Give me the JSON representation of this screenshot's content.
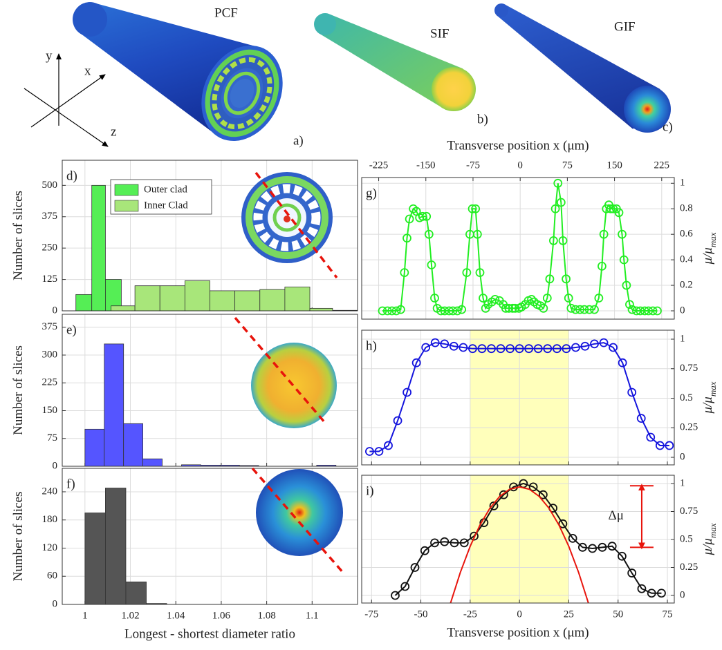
{
  "illustrations": {
    "fibers": [
      {
        "name": "PCF",
        "label": "a)"
      },
      {
        "name": "SIF",
        "label": "b)"
      },
      {
        "name": "GIF",
        "label": "c)"
      }
    ],
    "axes": [
      "y",
      "x",
      "z"
    ]
  },
  "chart_data": [
    {
      "type": "histogram",
      "label": "d)",
      "ylabel": "Number of slices",
      "ylim": [
        0,
        600
      ],
      "yticks": [
        0,
        125,
        250,
        375,
        500
      ],
      "grid": true,
      "legend": "upper left",
      "series": [
        {
          "name": "Outer clad",
          "color": "#55ee55",
          "bins": [
            0.996,
            1.003,
            1.009,
            1.016
          ],
          "values": [
            65,
            500,
            125
          ]
        },
        {
          "name": "Inner Clad",
          "color": "#a8e67a",
          "bins": [
            1.0115,
            1.022,
            1.033,
            1.044,
            1.055,
            1.066,
            1.077,
            1.088,
            1.099,
            1.109,
            1.12
          ],
          "values": [
            20,
            100,
            100,
            120,
            80,
            80,
            85,
            95,
            10,
            2
          ]
        }
      ]
    },
    {
      "type": "histogram",
      "label": "e)",
      "ylabel": "Number of slices",
      "ylim": [
        0,
        410
      ],
      "yticks": [
        0,
        75,
        150,
        225,
        300,
        375
      ],
      "grid": true,
      "series": [
        {
          "color": "#5555ff",
          "bins": [
            1,
            1.0085,
            1.017,
            1.0255,
            1.034,
            1.0425,
            1.051,
            1.0595,
            1.068,
            1.0765,
            1.085,
            1.0935,
            1.102,
            1.1105
          ],
          "values": [
            100,
            330,
            115,
            20,
            0,
            4,
            3,
            3,
            2,
            0,
            0,
            0,
            3
          ]
        }
      ]
    },
    {
      "type": "histogram",
      "label": "f)",
      "ylabel": "Number of slices",
      "xlabel": "Longest - shortest diameter ratio",
      "xlim": [
        0.99,
        1.12
      ],
      "xticks": [
        1,
        1.02,
        1.04,
        1.06,
        1.08,
        1.1
      ],
      "ylim": [
        0,
        290
      ],
      "yticks": [
        0,
        60,
        120,
        180,
        240
      ],
      "grid": true,
      "series": [
        {
          "color": "#555555",
          "bins": [
            1,
            1.009,
            1.018,
            1.027,
            1.036
          ],
          "values": [
            195,
            248,
            48,
            2
          ]
        }
      ]
    },
    {
      "type": "line",
      "label": "g)",
      "xlabel": "Transverse position x (μm)",
      "xaxis": "top",
      "yaxis": "right",
      "ylabel": "μ/μ",
      "ylabel_sub": "max",
      "grid": true,
      "xlim": [
        -252,
        245
      ],
      "xticks": [
        -225,
        -150,
        -75,
        0,
        75,
        150,
        225
      ],
      "ylim": [
        -0.065,
        1.045
      ],
      "yticks": [
        0,
        0.2,
        0.4,
        0.6,
        0.8,
        1
      ],
      "x": [
        -219,
        -211,
        -204,
        -197,
        -190,
        -184,
        -180,
        -176,
        -170,
        -165,
        -160,
        -155,
        -149,
        -145,
        -141,
        -136,
        -132,
        -126,
        -120,
        -113,
        -107,
        -100,
        -93,
        -85,
        -80,
        -76,
        -71,
        -68,
        -64,
        -59,
        -55,
        -51,
        -45,
        -40,
        -33,
        -27,
        -23,
        -18,
        -12,
        -8,
        -2,
        2,
        8,
        13,
        18,
        22,
        27,
        32,
        37,
        43,
        47,
        53,
        56,
        60,
        65,
        68,
        73,
        77,
        81,
        88,
        95,
        102,
        110,
        118,
        125,
        130,
        133,
        137,
        141,
        144,
        148,
        153,
        157,
        162,
        165,
        169,
        174,
        178,
        185,
        191,
        198,
        204,
        211,
        218
      ],
      "series": [
        {
          "color": "#22ee22",
          "marker": "circle",
          "values": [
            0,
            0,
            0,
            0,
            0.01,
            0.3,
            0.57,
            0.72,
            0.8,
            0.78,
            0.73,
            0.74,
            0.74,
            0.6,
            0.36,
            0.1,
            0.02,
            0,
            0,
            0,
            0,
            0,
            0.01,
            0.3,
            0.6,
            0.8,
            0.8,
            0.6,
            0.3,
            0.1,
            0.02,
            0.05,
            0.07,
            0.09,
            0.08,
            0.05,
            0.02,
            0.02,
            0.02,
            0.02,
            0.02,
            0.03,
            0.05,
            0.08,
            0.09,
            0.07,
            0.05,
            0.04,
            0.02,
            0.1,
            0.25,
            0.55,
            0.8,
            1,
            0.85,
            0.55,
            0.25,
            0.1,
            0.02,
            0.01,
            0.01,
            0.01,
            0.01,
            0.01,
            0.1,
            0.35,
            0.6,
            0.8,
            0.83,
            0.8,
            0.8,
            0.8,
            0.77,
            0.6,
            0.4,
            0.2,
            0.05,
            0.01,
            0,
            0,
            0,
            0,
            0,
            0
          ]
        }
      ]
    },
    {
      "type": "line",
      "label": "h)",
      "yaxis": "right",
      "ylabel": "μ/μ",
      "ylabel_sub": "max",
      "grid": true,
      "highlight": [
        -25,
        25
      ],
      "highlight_color": "#ffffaa",
      "ylim": [
        -0.064,
        1.076
      ],
      "yticks": [
        0,
        0.25,
        0.5,
        0.75,
        1
      ],
      "x": [
        -76,
        -71.25,
        -66.5,
        -61.75,
        -57,
        -52.25,
        -47.5,
        -42.75,
        -38,
        -33.25,
        -28.5,
        -23.75,
        -19,
        -14.25,
        -9.5,
        -4.75,
        0,
        4.75,
        9.5,
        14.25,
        19,
        23.75,
        28.5,
        33.25,
        38,
        42.75,
        47.5,
        52.25,
        57,
        61.75,
        66.5,
        71.25,
        76
      ],
      "series": [
        {
          "color": "#1515dd",
          "marker": "circle",
          "values": [
            0.05,
            0.05,
            0.1,
            0.31,
            0.55,
            0.8,
            0.93,
            0.97,
            0.96,
            0.94,
            0.93,
            0.92,
            0.92,
            0.92,
            0.92,
            0.92,
            0.92,
            0.92,
            0.92,
            0.92,
            0.92,
            0.92,
            0.93,
            0.94,
            0.96,
            0.97,
            0.93,
            0.8,
            0.55,
            0.33,
            0.17,
            0.1,
            0.1
          ]
        }
      ]
    },
    {
      "type": "line",
      "label": "i)",
      "xlabel": "Transverse position x (μm)",
      "yaxis": "right",
      "ylabel": "μ/μ",
      "ylabel_sub": "max",
      "grid": true,
      "highlight": [
        -25,
        25
      ],
      "highlight_color": "#ffffaa",
      "xlim": [
        -80,
        78.5
      ],
      "xticks": [
        -75,
        -50,
        -25,
        0,
        25,
        50,
        75
      ],
      "ylim": [
        -0.068,
        1.074
      ],
      "yticks": [
        0,
        0.25,
        0.5,
        0.75,
        1
      ],
      "x": [
        -63,
        -58,
        -53,
        -48,
        -43,
        -38,
        -33,
        -28,
        -23,
        -18,
        -13,
        -8,
        -3,
        2,
        7,
        12,
        17,
        22,
        27,
        32,
        37,
        42,
        47,
        52,
        57,
        62,
        67,
        72
      ],
      "series": [
        {
          "color": "#111111",
          "marker": "circle",
          "values": [
            0,
            0.08,
            0.25,
            0.4,
            0.47,
            0.48,
            0.47,
            0.47,
            0.53,
            0.65,
            0.8,
            0.9,
            0.97,
            1,
            0.97,
            0.9,
            0.78,
            0.64,
            0.51,
            0.43,
            0.42,
            0.43,
            0.44,
            0.35,
            0.2,
            0.06,
            0.02,
            0.02
          ]
        },
        {
          "color": "#e8140c",
          "marker": "none",
          "x": [
            -35,
            -30,
            -25,
            -20,
            -15,
            -10,
            -5,
            0,
            5,
            10,
            15,
            20,
            25,
            30,
            35
          ],
          "values": [
            -0.071,
            0.205,
            0.439,
            0.63,
            0.779,
            0.885,
            0.949,
            0.97,
            0.949,
            0.885,
            0.779,
            0.63,
            0.439,
            0.205,
            -0.071
          ]
        }
      ],
      "annotation": {
        "text": "Δμ",
        "x": 62,
        "y": [
          0.43,
          0.98
        ]
      }
    }
  ]
}
